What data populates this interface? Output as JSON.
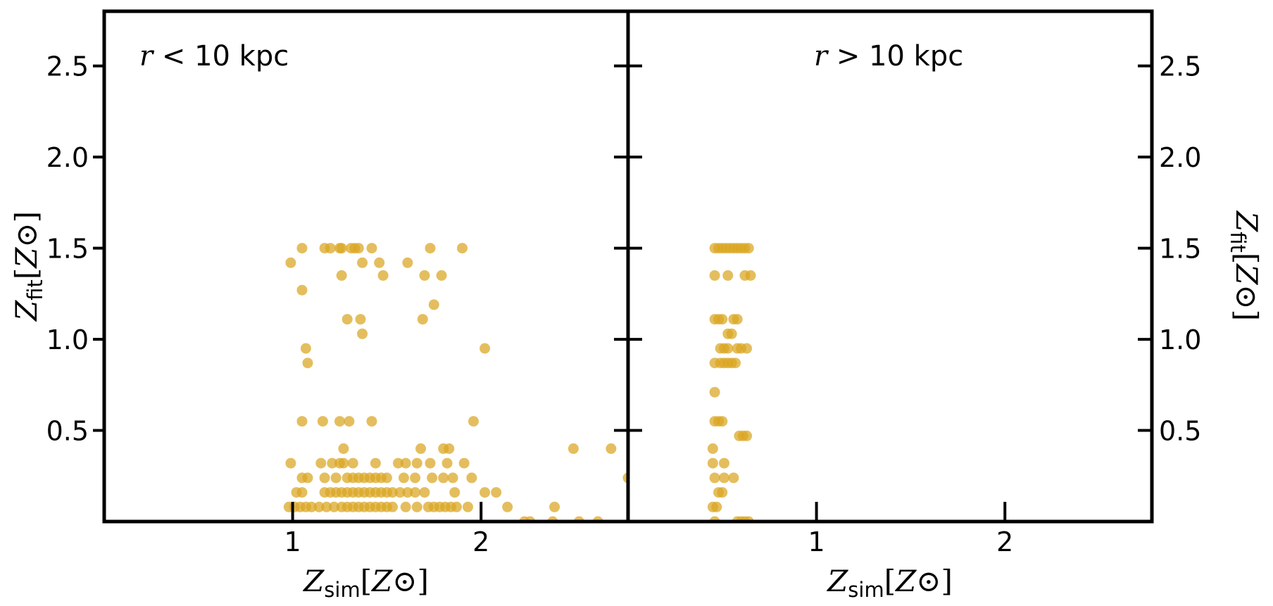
{
  "chart_data": [
    {
      "type": "scatter",
      "panel": "left",
      "annotation": "r < 10 kpc",
      "xlabel": "Z_sim[Z_⊙]",
      "ylabel": "Z_fit[Z_⊙]",
      "xlim": [
        0,
        2.78
      ],
      "ylim": [
        0,
        2.8
      ],
      "xticks": [
        "1",
        "2"
      ],
      "yticks": [
        "0.5",
        "1.0",
        "1.5",
        "2.0",
        "2.5"
      ],
      "ytick_side": "left",
      "marker_color": "#DAA520",
      "points": [
        [
          0.98,
          0.08
        ],
        [
          1.01,
          0.08
        ],
        [
          1.04,
          0.08
        ],
        [
          1.07,
          0.08
        ],
        [
          1.1,
          0.08
        ],
        [
          1.14,
          0.08
        ],
        [
          1.18,
          0.08
        ],
        [
          1.22,
          0.08
        ],
        [
          1.26,
          0.08
        ],
        [
          1.29,
          0.08
        ],
        [
          1.32,
          0.08
        ],
        [
          1.35,
          0.08
        ],
        [
          1.38,
          0.08
        ],
        [
          1.41,
          0.08
        ],
        [
          1.44,
          0.08
        ],
        [
          1.47,
          0.08
        ],
        [
          1.5,
          0.08
        ],
        [
          1.53,
          0.08
        ],
        [
          1.6,
          0.08
        ],
        [
          1.66,
          0.08
        ],
        [
          1.72,
          0.08
        ],
        [
          1.75,
          0.08
        ],
        [
          1.78,
          0.08
        ],
        [
          1.81,
          0.08
        ],
        [
          1.84,
          0.08
        ],
        [
          1.87,
          0.08
        ],
        [
          1.93,
          0.08
        ],
        [
          2.14,
          0.08
        ],
        [
          2.39,
          0.08
        ],
        [
          1.02,
          0.16
        ],
        [
          1.05,
          0.16
        ],
        [
          1.17,
          0.16
        ],
        [
          1.2,
          0.16
        ],
        [
          1.23,
          0.16
        ],
        [
          1.26,
          0.16
        ],
        [
          1.29,
          0.16
        ],
        [
          1.32,
          0.16
        ],
        [
          1.35,
          0.16
        ],
        [
          1.38,
          0.16
        ],
        [
          1.41,
          0.16
        ],
        [
          1.44,
          0.16
        ],
        [
          1.47,
          0.16
        ],
        [
          1.5,
          0.16
        ],
        [
          1.53,
          0.16
        ],
        [
          1.57,
          0.16
        ],
        [
          1.61,
          0.16
        ],
        [
          1.65,
          0.16
        ],
        [
          1.7,
          0.16
        ],
        [
          1.86,
          0.16
        ],
        [
          2.02,
          0.16
        ],
        [
          2.08,
          0.16
        ],
        [
          1.05,
          0.24
        ],
        [
          1.08,
          0.24
        ],
        [
          1.17,
          0.24
        ],
        [
          1.23,
          0.24
        ],
        [
          1.29,
          0.24
        ],
        [
          1.32,
          0.24
        ],
        [
          1.35,
          0.24
        ],
        [
          1.38,
          0.24
        ],
        [
          1.41,
          0.24
        ],
        [
          1.44,
          0.24
        ],
        [
          1.47,
          0.24
        ],
        [
          1.5,
          0.24
        ],
        [
          1.59,
          0.24
        ],
        [
          1.65,
          0.24
        ],
        [
          1.74,
          0.24
        ],
        [
          1.8,
          0.24
        ],
        [
          1.85,
          0.24
        ],
        [
          1.95,
          0.24
        ],
        [
          2.78,
          0.24
        ],
        [
          0.99,
          0.32
        ],
        [
          1.15,
          0.32
        ],
        [
          1.21,
          0.32
        ],
        [
          1.25,
          0.32
        ],
        [
          1.27,
          0.32
        ],
        [
          1.32,
          0.32
        ],
        [
          1.44,
          0.32
        ],
        [
          1.56,
          0.32
        ],
        [
          1.6,
          0.32
        ],
        [
          1.66,
          0.32
        ],
        [
          1.73,
          0.32
        ],
        [
          1.82,
          0.32
        ],
        [
          1.91,
          0.32
        ],
        [
          1.27,
          0.4
        ],
        [
          1.68,
          0.4
        ],
        [
          1.8,
          0.4
        ],
        [
          1.83,
          0.4
        ],
        [
          2.49,
          0.4
        ],
        [
          2.69,
          0.4
        ],
        [
          1.05,
          0.55
        ],
        [
          1.16,
          0.55
        ],
        [
          1.25,
          0.55
        ],
        [
          1.3,
          0.55
        ],
        [
          1.42,
          0.55
        ],
        [
          1.96,
          0.55
        ],
        [
          1.08,
          0.87
        ],
        [
          1.07,
          0.95
        ],
        [
          2.02,
          0.95
        ],
        [
          1.37,
          1.03
        ],
        [
          1.29,
          1.11
        ],
        [
          1.36,
          1.11
        ],
        [
          1.69,
          1.11
        ],
        [
          1.75,
          1.19
        ],
        [
          1.05,
          1.27
        ],
        [
          1.26,
          1.35
        ],
        [
          1.48,
          1.35
        ],
        [
          1.7,
          1.35
        ],
        [
          1.79,
          1.35
        ],
        [
          0.99,
          1.42
        ],
        [
          1.37,
          1.42
        ],
        [
          1.46,
          1.42
        ],
        [
          1.61,
          1.42
        ],
        [
          1.05,
          1.5
        ],
        [
          1.17,
          1.5
        ],
        [
          1.2,
          1.5
        ],
        [
          1.25,
          1.5
        ],
        [
          1.26,
          1.5
        ],
        [
          1.31,
          1.5
        ],
        [
          1.33,
          1.5
        ],
        [
          1.35,
          1.5
        ],
        [
          1.42,
          1.5
        ],
        [
          1.73,
          1.5
        ],
        [
          1.9,
          1.5
        ],
        [
          2.23,
          0.0
        ],
        [
          2.26,
          0.0
        ],
        [
          2.38,
          0.0
        ],
        [
          2.52,
          0.0
        ],
        [
          2.62,
          0.0
        ]
      ]
    },
    {
      "type": "scatter",
      "panel": "right",
      "annotation": "r > 10 kpc",
      "xlabel": "Z_sim[Z_⊙]",
      "ylabel": "Z_fit[Z_⊙]",
      "xlim": [
        0,
        2.78
      ],
      "ylim": [
        0,
        2.8
      ],
      "xticks": [
        "1",
        "2"
      ],
      "yticks": [
        "0.5",
        "1.0",
        "1.5",
        "2.0",
        "2.5"
      ],
      "ytick_side": "right",
      "marker_color": "#DAA520",
      "points": [
        [
          0.46,
          1.5
        ],
        [
          0.48,
          1.5
        ],
        [
          0.5,
          1.5
        ],
        [
          0.52,
          1.5
        ],
        [
          0.54,
          1.5
        ],
        [
          0.56,
          1.5
        ],
        [
          0.58,
          1.5
        ],
        [
          0.6,
          1.5
        ],
        [
          0.62,
          1.5
        ],
        [
          0.64,
          1.5
        ],
        [
          0.46,
          1.35
        ],
        [
          0.53,
          1.35
        ],
        [
          0.62,
          1.35
        ],
        [
          0.65,
          1.35
        ],
        [
          0.46,
          1.11
        ],
        [
          0.48,
          1.11
        ],
        [
          0.5,
          1.11
        ],
        [
          0.56,
          1.11
        ],
        [
          0.58,
          1.11
        ],
        [
          0.53,
          1.03
        ],
        [
          0.55,
          1.03
        ],
        [
          0.49,
          0.95
        ],
        [
          0.51,
          0.95
        ],
        [
          0.53,
          0.95
        ],
        [
          0.58,
          0.95
        ],
        [
          0.6,
          0.95
        ],
        [
          0.63,
          0.95
        ],
        [
          0.46,
          0.87
        ],
        [
          0.49,
          0.87
        ],
        [
          0.51,
          0.87
        ],
        [
          0.53,
          0.87
        ],
        [
          0.55,
          0.87
        ],
        [
          0.57,
          0.87
        ],
        [
          0.46,
          0.71
        ],
        [
          0.46,
          0.55
        ],
        [
          0.48,
          0.55
        ],
        [
          0.5,
          0.55
        ],
        [
          0.59,
          0.47
        ],
        [
          0.61,
          0.47
        ],
        [
          0.63,
          0.47
        ],
        [
          0.45,
          0.4
        ],
        [
          0.51,
          0.32
        ],
        [
          0.45,
          0.32
        ],
        [
          0.51,
          0.24
        ],
        [
          0.46,
          0.24
        ],
        [
          0.56,
          0.24
        ],
        [
          0.48,
          0.16
        ],
        [
          0.5,
          0.16
        ],
        [
          0.45,
          0.08
        ],
        [
          0.47,
          0.08
        ],
        [
          0.46,
          0.0
        ],
        [
          0.58,
          0.0
        ],
        [
          0.6,
          0.0
        ],
        [
          0.62,
          0.0
        ],
        [
          0.64,
          0.0
        ]
      ]
    }
  ]
}
